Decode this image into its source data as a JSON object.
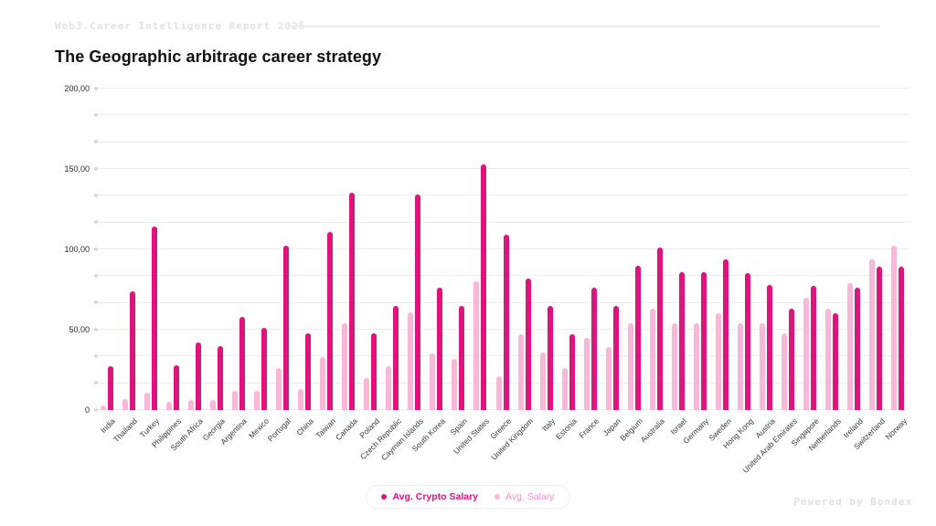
{
  "header": {
    "report_label": "Web3.Career Intelligence Report 2025"
  },
  "main": {
    "title": "The Geographic arbitrage career strategy"
  },
  "footer": {
    "powered_by": "Powered by Bondex"
  },
  "colors": {
    "crypto_salary": "#E0127C",
    "avg_salary": "#FBB6D8",
    "legend_salary_text": "#F794C6",
    "gridline": "#ededed",
    "grid_dot": "#d9d9d9"
  },
  "chart_data": {
    "type": "bar",
    "title": "The Geographic arbitrage career strategy",
    "xlabel": "",
    "ylabel": "",
    "ylim": [
      0,
      200
    ],
    "grid": true,
    "minor_gridlines_per_major": 2,
    "ytick_values": [
      0,
      50,
      100,
      150,
      200
    ],
    "ytick_labels": [
      "0",
      "50,00",
      "100,00",
      "150,00",
      "200,00"
    ],
    "legend_position": "bottom-center",
    "categories": [
      "India",
      "Thailand",
      "Turkey",
      "Philippines",
      "South Africa",
      "Georgia",
      "Argentina",
      "Mexico",
      "Portugal",
      "China",
      "Taiwan",
      "Canada",
      "Poland",
      "Czech Republic",
      "Cayman Islands",
      "South Korea",
      "Spain",
      "United States",
      "Greece",
      "United Kingdom",
      "Italy",
      "Estonia",
      "France",
      "Japan",
      "Belgium",
      "Australia",
      "Israel",
      "Germany",
      "Sweden",
      "Hong Kong",
      "Austria",
      "United Arab Emirates",
      "Singapore",
      "Netherlands",
      "Ireland",
      "Switzerland",
      "Norway"
    ],
    "series": [
      {
        "name": "Avg. Crypto Salary",
        "color": "#E0127C",
        "values": [
          27,
          74,
          114,
          28,
          42,
          40,
          58,
          51,
          102,
          48,
          111,
          135,
          48,
          65,
          134,
          76,
          65,
          153,
          109,
          82,
          65,
          47,
          76,
          65,
          90,
          101,
          86,
          86,
          94,
          85,
          78,
          63,
          77,
          60,
          76,
          89,
          89
        ]
      },
      {
        "name": "Avg. Salary",
        "color": "#FBB6D8",
        "values": [
          3,
          7,
          11,
          5,
          6,
          6,
          12,
          12,
          26,
          13,
          33,
          54,
          20,
          27,
          61,
          35,
          32,
          80,
          21,
          47,
          36,
          26,
          45,
          39,
          54,
          63,
          54,
          54,
          60,
          54,
          54,
          48,
          70,
          63,
          79,
          94,
          102
        ]
      }
    ]
  }
}
